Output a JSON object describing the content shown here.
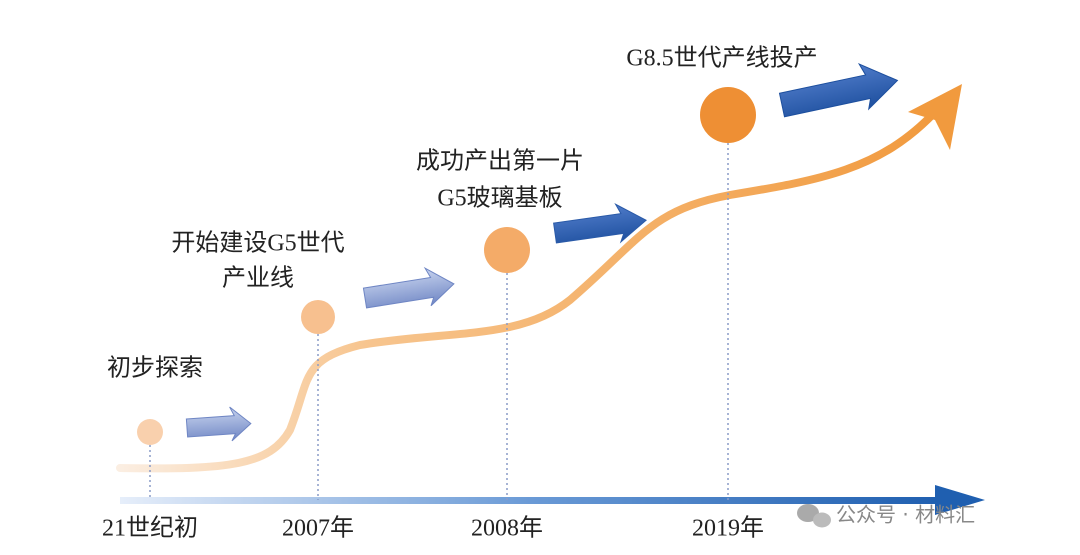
{
  "milestones": [
    {
      "label": [
        "初步探索"
      ],
      "period": "21世纪初"
    },
    {
      "label": [
        "开始建设G5世代",
        "产业线"
      ],
      "period": "2007年"
    },
    {
      "label": [
        "成功产出第一片",
        "G5玻璃基板"
      ],
      "period": "2008年"
    },
    {
      "label": [
        "G8.5世代产线投产"
      ],
      "period": "2019年"
    }
  ],
  "watermark": "公众号 · 材料汇"
}
